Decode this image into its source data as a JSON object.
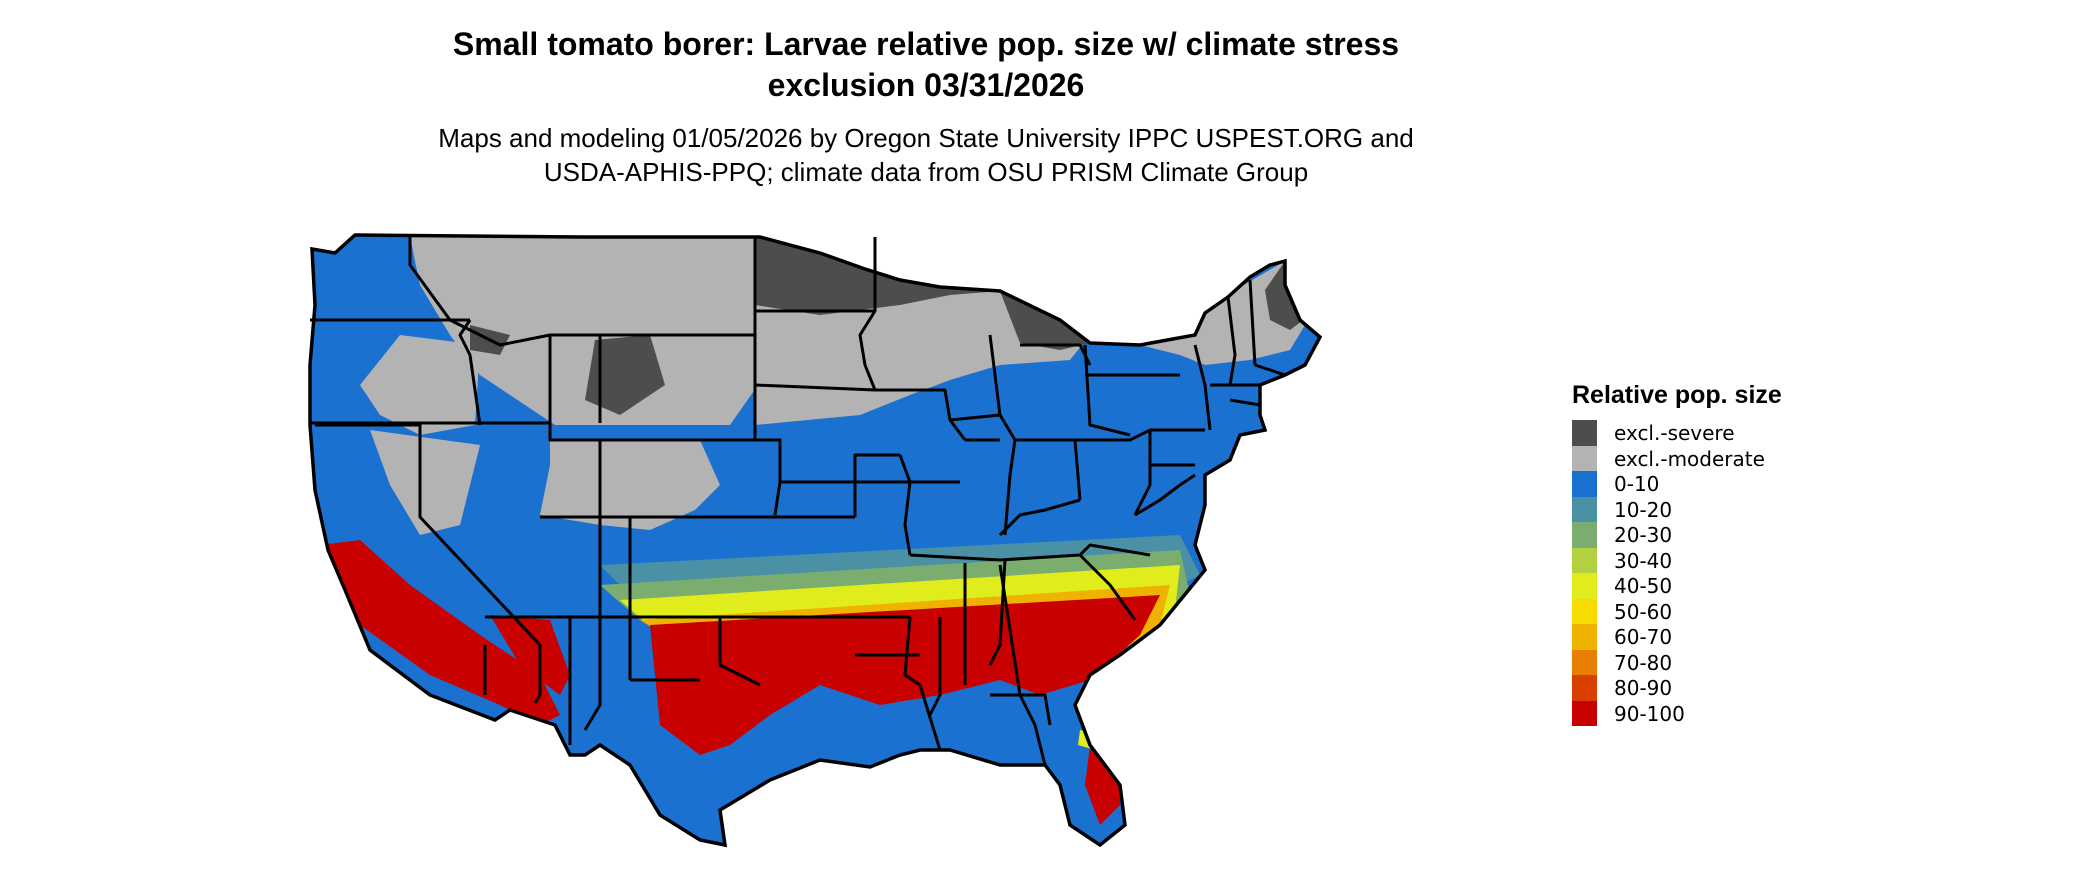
{
  "title_line1": "Small tomato borer: Larvae relative pop. size w/ climate stress",
  "title_line2": "exclusion 03/31/2026",
  "subtitle_line1": "Maps and modeling 01/05/2026 by Oregon State University IPPC USPEST.ORG and",
  "subtitle_line2": "USDA-APHIS-PPQ; climate data from OSU PRISM Climate Group",
  "legend": {
    "title": "Relative pop. size",
    "items": [
      {
        "label": "excl.-severe",
        "color": "#4d4d4d"
      },
      {
        "label": "excl.-moderate",
        "color": "#b3b3b3"
      },
      {
        "label": "0-10",
        "color": "#1b71d0"
      },
      {
        "label": "10-20",
        "color": "#4a91a6"
      },
      {
        "label": "20-30",
        "color": "#7bae6e"
      },
      {
        "label": "30-40",
        "color": "#b2d040"
      },
      {
        "label": "40-50",
        "color": "#e1ec1d"
      },
      {
        "label": "50-60",
        "color": "#f6dc00"
      },
      {
        "label": "60-70",
        "color": "#f0b200"
      },
      {
        "label": "70-80",
        "color": "#e87f00"
      },
      {
        "label": "80-90",
        "color": "#d94000"
      },
      {
        "label": "90-100",
        "color": "#c80000"
      }
    ]
  },
  "map": {
    "region": "Contiguous United States",
    "outline_color": "#000000"
  }
}
